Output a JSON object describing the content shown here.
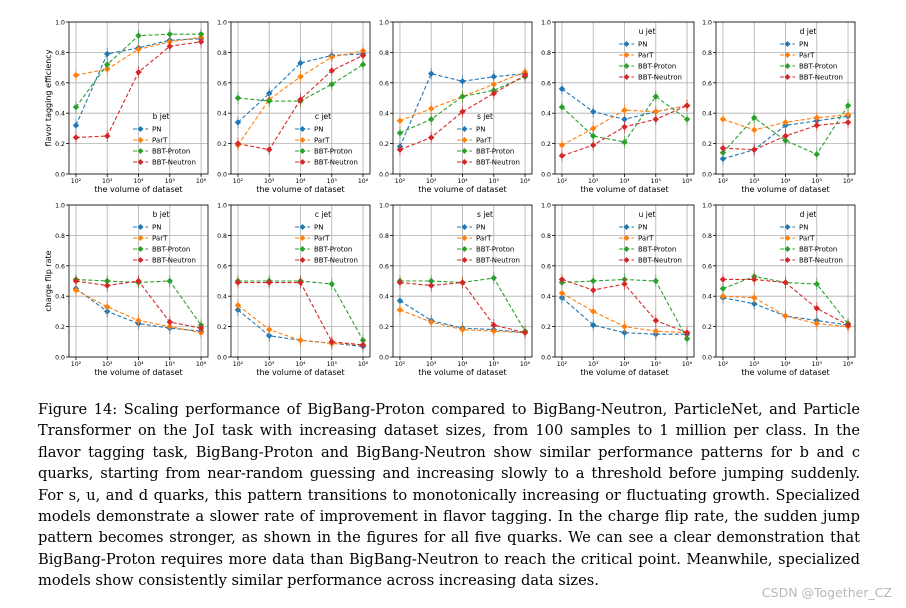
{
  "caption": "Figure 14: Scaling performance of BigBang-Proton compared to BigBang-Neutron, ParticleNet, and Particle Transformer on the JoI task with increasing dataset sizes, from 100 samples to 1 million per class. In the flavor tagging task, BigBang-Proton and BigBang-Neutron show similar performance patterns for b and c quarks, starting from near-random guessing and increasing slowly to a threshold before jumping suddenly. For s, u, and d quarks, this pattern transitions to monotonically increasing or fluctuating growth. Specialized models demonstrate a slower rate of improvement in flavor tagging. In the charge flip rate, the sudden jump pattern becomes stronger, as shown in the figures for all five quarks. We can see a clear demonstration that BigBang-Proton requires more data than BigBang-Neutron to reach the critical point. Meanwhile, specialized models show consistently similar performance across increasing data sizes.",
  "watermark": "CSDN @Together_CZ",
  "series_meta": [
    {
      "name": "PN",
      "color": "#1f77b4"
    },
    {
      "name": "ParT",
      "color": "#ff7f0e"
    },
    {
      "name": "BBT-Proton",
      "color": "#2ca02c"
    },
    {
      "name": "BBT-Neutron",
      "color": "#d62728"
    }
  ],
  "chart_data": [
    {
      "type": "line",
      "row": "flavor",
      "title": "b jet",
      "legend": "lower-right",
      "ylabel": "flavor tagging efficiency",
      "xlabel": "the volume of dataset",
      "x": [
        100,
        1000,
        10000,
        100000,
        1000000
      ],
      "xtick_labels": [
        "10²",
        "10³",
        "10⁴",
        "10⁵",
        "10⁶"
      ],
      "ylim": [
        0,
        1
      ],
      "yticks": [
        "0.0",
        "0.2",
        "0.4",
        "0.6",
        "0.8",
        "1.0"
      ],
      "series": [
        {
          "name": "PN",
          "values": [
            0.32,
            0.79,
            0.83,
            0.88,
            0.89
          ]
        },
        {
          "name": "ParT",
          "values": [
            0.65,
            0.69,
            0.82,
            0.87,
            0.9
          ]
        },
        {
          "name": "BBT-Proton",
          "values": [
            0.44,
            0.72,
            0.91,
            0.92,
            0.92
          ]
        },
        {
          "name": "BBT-Neutron",
          "values": [
            0.24,
            0.25,
            0.67,
            0.84,
            0.87
          ]
        }
      ]
    },
    {
      "type": "line",
      "row": "flavor",
      "title": "c jet",
      "legend": "lower-right",
      "ylabel": "",
      "xlabel": "the volume of dataset",
      "x": [
        100,
        1000,
        10000,
        100000,
        1000000
      ],
      "xtick_labels": [
        "10²",
        "10³",
        "10⁴",
        "10⁵",
        "10⁶"
      ],
      "ylim": [
        0,
        1
      ],
      "yticks": [
        "0.0",
        "0.2",
        "0.4",
        "0.6",
        "0.8",
        "1.0"
      ],
      "series": [
        {
          "name": "PN",
          "values": [
            0.34,
            0.53,
            0.73,
            0.78,
            0.79
          ]
        },
        {
          "name": "ParT",
          "values": [
            0.19,
            0.49,
            0.64,
            0.77,
            0.81
          ]
        },
        {
          "name": "BBT-Proton",
          "values": [
            0.5,
            0.48,
            0.48,
            0.59,
            0.72
          ]
        },
        {
          "name": "BBT-Neutron",
          "values": [
            0.2,
            0.16,
            0.49,
            0.68,
            0.78
          ]
        }
      ]
    },
    {
      "type": "line",
      "row": "flavor",
      "title": "s jet",
      "legend": "lower-right",
      "ylabel": "",
      "xlabel": "the volume of dataset",
      "x": [
        100,
        1000,
        10000,
        100000,
        1000000
      ],
      "xtick_labels": [
        "10²",
        "10³",
        "10⁴",
        "10⁵",
        "10⁶"
      ],
      "ylim": [
        0,
        1
      ],
      "yticks": [
        "0.0",
        "0.2",
        "0.4",
        "0.6",
        "0.8",
        "1.0"
      ],
      "series": [
        {
          "name": "PN",
          "values": [
            0.18,
            0.66,
            0.61,
            0.64,
            0.66
          ]
        },
        {
          "name": "ParT",
          "values": [
            0.35,
            0.43,
            0.51,
            0.59,
            0.67
          ]
        },
        {
          "name": "BBT-Proton",
          "values": [
            0.27,
            0.36,
            0.51,
            0.55,
            0.64
          ]
        },
        {
          "name": "BBT-Neutron",
          "values": [
            0.16,
            0.24,
            0.41,
            0.53,
            0.65
          ]
        }
      ]
    },
    {
      "type": "line",
      "row": "flavor",
      "title": "u jet",
      "legend": "upper-right",
      "ylabel": "",
      "xlabel": "the volume of dataset",
      "x": [
        100,
        1000,
        10000,
        100000,
        1000000
      ],
      "xtick_labels": [
        "10²",
        "10³",
        "10⁴",
        "10⁵",
        "10⁶"
      ],
      "ylim": [
        0,
        1
      ],
      "yticks": [
        "0.0",
        "0.2",
        "0.4",
        "0.6",
        "0.8",
        "1.0"
      ],
      "series": [
        {
          "name": "PN",
          "values": [
            0.56,
            0.41,
            0.36,
            0.41,
            0.45
          ]
        },
        {
          "name": "ParT",
          "values": [
            0.19,
            0.3,
            0.42,
            0.41,
            0.45
          ]
        },
        {
          "name": "BBT-Proton",
          "values": [
            0.44,
            0.25,
            0.21,
            0.51,
            0.36
          ]
        },
        {
          "name": "BBT-Neutron",
          "values": [
            0.12,
            0.19,
            0.31,
            0.36,
            0.45
          ]
        }
      ]
    },
    {
      "type": "line",
      "row": "flavor",
      "title": "d jet",
      "legend": "upper-right",
      "ylabel": "",
      "xlabel": "the volume of dataset",
      "x": [
        100,
        1000,
        10000,
        100000,
        1000000
      ],
      "xtick_labels": [
        "10²",
        "10³",
        "10⁴",
        "10⁵",
        "10⁶"
      ],
      "ylim": [
        0,
        1
      ],
      "yticks": [
        "0.0",
        "0.2",
        "0.4",
        "0.6",
        "0.8",
        "1.0"
      ],
      "series": [
        {
          "name": "PN",
          "values": [
            0.1,
            0.16,
            0.32,
            0.35,
            0.38
          ]
        },
        {
          "name": "ParT",
          "values": [
            0.36,
            0.29,
            0.34,
            0.37,
            0.39
          ]
        },
        {
          "name": "BBT-Proton",
          "values": [
            0.14,
            0.37,
            0.22,
            0.13,
            0.45
          ]
        },
        {
          "name": "BBT-Neutron",
          "values": [
            0.17,
            0.16,
            0.25,
            0.32,
            0.34
          ]
        }
      ]
    },
    {
      "type": "line",
      "row": "charge",
      "title": "b jet",
      "legend": "upper-right",
      "ylabel": "charge flip rate",
      "xlabel": "the volume of dataset",
      "x": [
        100,
        1000,
        10000,
        100000,
        1000000
      ],
      "xtick_labels": [
        "10²",
        "10³",
        "10⁴",
        "10⁵",
        "10⁶"
      ],
      "ylim": [
        0,
        1
      ],
      "yticks": [
        "0.0",
        "0.2",
        "0.4",
        "0.6",
        "0.8",
        "1.0"
      ],
      "series": [
        {
          "name": "PN",
          "values": [
            0.45,
            0.3,
            0.22,
            0.19,
            0.17
          ]
        },
        {
          "name": "ParT",
          "values": [
            0.44,
            0.33,
            0.24,
            0.2,
            0.16
          ]
        },
        {
          "name": "BBT-Proton",
          "values": [
            0.51,
            0.5,
            0.49,
            0.5,
            0.21
          ]
        },
        {
          "name": "BBT-Neutron",
          "values": [
            0.5,
            0.47,
            0.5,
            0.23,
            0.19
          ]
        }
      ]
    },
    {
      "type": "line",
      "row": "charge",
      "title": "c jet",
      "legend": "upper-right",
      "ylabel": "",
      "xlabel": "the volume of dataset",
      "x": [
        100,
        1000,
        10000,
        100000,
        1000000
      ],
      "xtick_labels": [
        "10²",
        "10³",
        "10⁴",
        "10⁵",
        "10⁶"
      ],
      "ylim": [
        0,
        1
      ],
      "yticks": [
        "0.0",
        "0.2",
        "0.4",
        "0.6",
        "0.8",
        "1.0"
      ],
      "series": [
        {
          "name": "PN",
          "values": [
            0.31,
            0.14,
            0.11,
            0.09,
            0.07
          ]
        },
        {
          "name": "ParT",
          "values": [
            0.34,
            0.18,
            0.11,
            0.09,
            0.08
          ]
        },
        {
          "name": "BBT-Proton",
          "values": [
            0.5,
            0.5,
            0.5,
            0.48,
            0.11
          ]
        },
        {
          "name": "BBT-Neutron",
          "values": [
            0.49,
            0.49,
            0.49,
            0.1,
            0.08
          ]
        }
      ]
    },
    {
      "type": "line",
      "row": "charge",
      "title": "s jet",
      "legend": "upper-right",
      "ylabel": "",
      "xlabel": "the volume of dataset",
      "x": [
        100,
        1000,
        10000,
        100000,
        1000000
      ],
      "xtick_labels": [
        "10²",
        "10³",
        "10⁴",
        "10⁵",
        "10⁶"
      ],
      "ylim": [
        0,
        1
      ],
      "yticks": [
        "0.0",
        "0.2",
        "0.4",
        "0.6",
        "0.8",
        "1.0"
      ],
      "series": [
        {
          "name": "PN",
          "values": [
            0.37,
            0.24,
            0.19,
            0.18,
            0.16
          ]
        },
        {
          "name": "ParT",
          "values": [
            0.31,
            0.23,
            0.18,
            0.17,
            0.16
          ]
        },
        {
          "name": "BBT-Proton",
          "values": [
            0.5,
            0.5,
            0.49,
            0.52,
            0.17
          ]
        },
        {
          "name": "BBT-Neutron",
          "values": [
            0.49,
            0.47,
            0.49,
            0.21,
            0.16
          ]
        }
      ]
    },
    {
      "type": "line",
      "row": "charge",
      "title": "u jet",
      "legend": "upper-right",
      "ylabel": "",
      "xlabel": "the volume of dataset",
      "x": [
        100,
        1000,
        10000,
        100000,
        1000000
      ],
      "xtick_labels": [
        "10²",
        "10³",
        "10⁴",
        "10⁵",
        "10⁶"
      ],
      "ylim": [
        0,
        1
      ],
      "yticks": [
        "0.0",
        "0.2",
        "0.4",
        "0.6",
        "0.8",
        "1.0"
      ],
      "series": [
        {
          "name": "PN",
          "values": [
            0.39,
            0.21,
            0.16,
            0.15,
            0.15
          ]
        },
        {
          "name": "ParT",
          "values": [
            0.42,
            0.3,
            0.2,
            0.17,
            0.16
          ]
        },
        {
          "name": "BBT-Proton",
          "values": [
            0.49,
            0.5,
            0.51,
            0.5,
            0.12
          ]
        },
        {
          "name": "BBT-Neutron",
          "values": [
            0.51,
            0.44,
            0.48,
            0.24,
            0.16
          ]
        }
      ]
    },
    {
      "type": "line",
      "row": "charge",
      "title": "d jet",
      "legend": "upper-right",
      "ylabel": "",
      "xlabel": "the volume of dataset",
      "x": [
        100,
        1000,
        10000,
        100000,
        1000000
      ],
      "xtick_labels": [
        "10²",
        "10³",
        "10⁴",
        "10⁵",
        "10⁶"
      ],
      "ylim": [
        0,
        1
      ],
      "yticks": [
        "0.0",
        "0.2",
        "0.4",
        "0.6",
        "0.8",
        "1.0"
      ],
      "series": [
        {
          "name": "PN",
          "values": [
            0.39,
            0.35,
            0.27,
            0.24,
            0.21
          ]
        },
        {
          "name": "ParT",
          "values": [
            0.4,
            0.39,
            0.27,
            0.22,
            0.2
          ]
        },
        {
          "name": "BBT-Proton",
          "values": [
            0.45,
            0.53,
            0.49,
            0.48,
            0.22
          ]
        },
        {
          "name": "BBT-Neutron",
          "values": [
            0.51,
            0.51,
            0.49,
            0.32,
            0.21
          ]
        }
      ]
    }
  ]
}
